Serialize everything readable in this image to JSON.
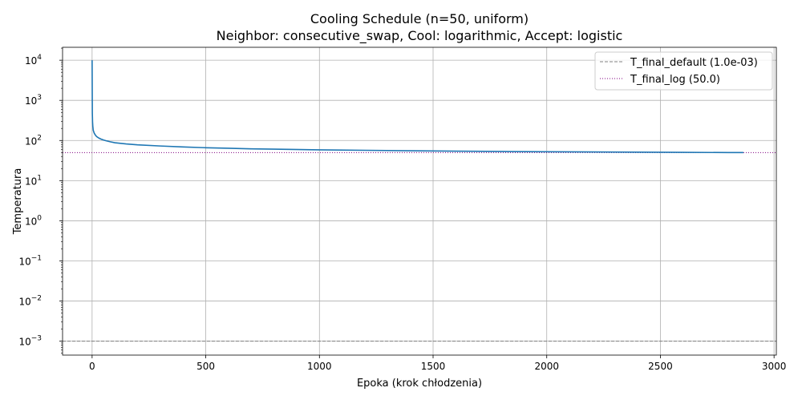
{
  "chart_data": {
    "type": "line",
    "title": "Cooling Schedule (n=50, uniform)",
    "subtitle": "Neighbor: consecutive_swap, Cool: logarithmic, Accept: logistic",
    "xlabel": "Epoka (krok chłodzenia)",
    "ylabel": "Temperatura",
    "xlim": [
      -130,
      3010
    ],
    "ylim": [
      0.00045,
      21000
    ],
    "yscale": "log",
    "grid": true,
    "legend_position": "top-right",
    "x_ticks": [
      0,
      500,
      1000,
      1500,
      2000,
      2500,
      3000
    ],
    "y_tick_exponents": [
      -3,
      -2,
      -1,
      0,
      1,
      2,
      3,
      4
    ],
    "y_tick_base": "10",
    "series": [
      {
        "color": "#1f77b4",
        "x": [
          0,
          1,
          2,
          3,
          5,
          8,
          10,
          15,
          20,
          30,
          40,
          50,
          60,
          80,
          100,
          150,
          200,
          300,
          400,
          500,
          600,
          700,
          800,
          1000,
          1200,
          1400,
          1600,
          1800,
          2000,
          2200,
          2400,
          2600,
          2800,
          2865
        ],
        "y": [
          10000,
          480,
          290,
          230,
          180,
          160,
          150,
          135,
          125,
          115,
          108,
          103,
          99,
          93,
          88,
          82,
          78,
          73,
          69,
          66,
          64,
          62,
          61,
          58.5,
          57,
          55.5,
          54.3,
          53.3,
          52.5,
          51.8,
          51.2,
          50.6,
          50.1,
          50
        ]
      }
    ],
    "hlines": [
      {
        "name": "T_final_default (1.0e-03)",
        "y": 0.001,
        "color": "#808080",
        "style": "dashed"
      },
      {
        "name": "T_final_log (50.0)",
        "y": 50.0,
        "color": "#800080",
        "style": "dotted"
      }
    ]
  }
}
